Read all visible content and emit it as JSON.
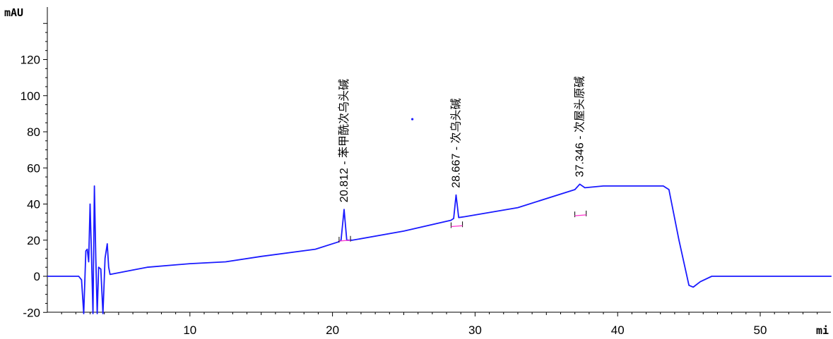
{
  "chart_data": {
    "type": "line",
    "ylabel": "mAU",
    "xlabel": "mi",
    "xlim": [
      0,
      55
    ],
    "ylim": [
      -20,
      140
    ],
    "x_ticks": [
      10,
      20,
      30,
      40,
      50
    ],
    "y_ticks": [
      -20,
      0,
      20,
      40,
      60,
      80,
      100,
      120
    ],
    "line_color": "#1a1aff",
    "marker_color": "#ff33cc",
    "series": [
      {
        "values": [
          [
            0,
            0
          ],
          [
            2.2,
            0
          ],
          [
            2.4,
            -2
          ],
          [
            2.55,
            -22
          ],
          [
            2.7,
            14
          ],
          [
            2.8,
            15
          ],
          [
            2.9,
            8
          ],
          [
            3.0,
            40
          ],
          [
            3.1,
            10
          ],
          [
            3.2,
            -22
          ],
          [
            3.3,
            50
          ],
          [
            3.4,
            10
          ],
          [
            3.5,
            -22
          ],
          [
            3.6,
            5
          ],
          [
            3.75,
            4
          ],
          [
            3.9,
            -22
          ],
          [
            4.05,
            10
          ],
          [
            4.2,
            18
          ],
          [
            4.3,
            5
          ],
          [
            4.4,
            1
          ],
          [
            7,
            5
          ],
          [
            10,
            7
          ],
          [
            12.5,
            8
          ],
          [
            15,
            11
          ],
          [
            18.8,
            15
          ],
          [
            20.4,
            19
          ],
          [
            20.6,
            20
          ],
          [
            20.812,
            37
          ],
          [
            21.0,
            20
          ],
          [
            21.4,
            20
          ],
          [
            25,
            25
          ],
          [
            28.3,
            31
          ],
          [
            28.5,
            32
          ],
          [
            28.667,
            45
          ],
          [
            28.85,
            32.5
          ],
          [
            29.3,
            33
          ],
          [
            33,
            38
          ],
          [
            37.0,
            48
          ],
          [
            37.346,
            51
          ],
          [
            37.7,
            49
          ],
          [
            39,
            50
          ],
          [
            40,
            50
          ],
          [
            43.2,
            50
          ],
          [
            43.6,
            48
          ],
          [
            44.3,
            20
          ],
          [
            45.0,
            -5
          ],
          [
            45.3,
            -6
          ],
          [
            45.8,
            -3
          ],
          [
            46.6,
            0
          ],
          [
            55,
            0
          ]
        ]
      }
    ],
    "peaks": [
      {
        "time": 20.812,
        "height": 37,
        "label": "20.812 - 苯甲酰次乌头碱"
      },
      {
        "time": 28.667,
        "height": 45,
        "label": "28.667 - 次乌头碱"
      },
      {
        "time": 37.346,
        "height": 51,
        "label": "37.346 - 次屋头原碱"
      }
    ],
    "stray_point": [
      25.6,
      87
    ]
  }
}
